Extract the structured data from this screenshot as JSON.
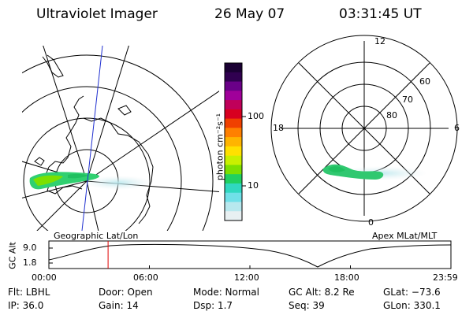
{
  "header": {
    "title": "Ultraviolet Imager",
    "date": "26 May 07",
    "time": "03:31:45 UT"
  },
  "left_map": {
    "label": "Geographic Lat/Lon"
  },
  "right_map": {
    "label": "Apex  MLat/MLT",
    "mlt_labels": [
      "12",
      "18",
      "6",
      "0"
    ],
    "lat_labels": [
      "60",
      "70",
      "80"
    ]
  },
  "colorbar": {
    "unit": "photon cm⁻²s⁻¹",
    "ticks": [
      "100",
      "10"
    ],
    "colors": [
      "#1a0033",
      "#300050",
      "#6a0088",
      "#a0009a",
      "#c0005a",
      "#d80020",
      "#f04000",
      "#ff8000",
      "#ffb400",
      "#ffe000",
      "#c8f000",
      "#7ce000",
      "#20d060",
      "#30d8c0",
      "#70e0e8",
      "#b8e8ee",
      "#e8f0f2"
    ]
  },
  "altitude_plot": {
    "ylabel": "GC Alt",
    "yticks": [
      "9.0",
      "1.8"
    ],
    "xticks": [
      "00:00",
      "06:00",
      "12:00",
      "18:00",
      "23:59"
    ],
    "marker_time_hours": 3.53,
    "marker_color": "#e00000"
  },
  "info": {
    "flt": "Flt: LBHL",
    "ip": "IP: 36.0",
    "door": "Door: Open",
    "gain": "Gain: 14",
    "mode": "Mode: Normal",
    "dsp": "Dsp:     1.7",
    "gcalt": "GC Alt: 8.2 Re",
    "seq": "Seq: 39",
    "glat": "GLat: −73.6",
    "glon": "GLon: 330.1"
  }
}
